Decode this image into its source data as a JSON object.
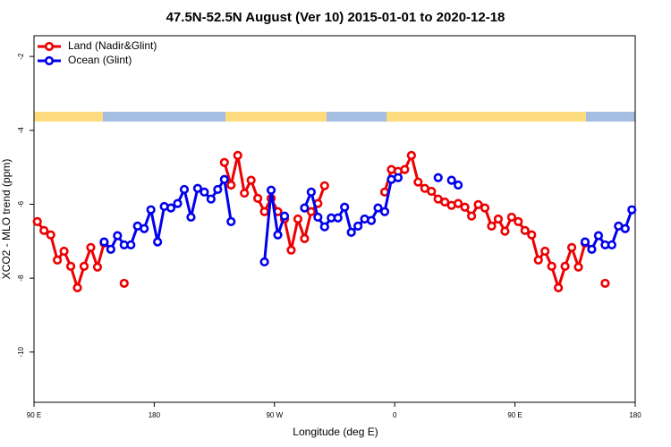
{
  "chart_data": {
    "type": "line",
    "title": "47.5N-52.5N August (Ver 10)   2015-01-01 to 2020-12-18",
    "x_label": "Longitude (deg E)",
    "y_label": "XCO2 - MLO trend (ppm)",
    "xlim": [
      90,
      540
    ],
    "ylim": [
      -11.36,
      -1.44
    ],
    "xticks": [
      {
        "value": 90,
        "label": "90 E"
      },
      180,
      {
        "value": 270,
        "label": "90 W"
      },
      {
        "value": 360,
        "label": "0"
      },
      {
        "value": 450,
        "label": "90 E"
      },
      {
        "value": 540,
        "label": "180"
      }
    ],
    "yticks": [
      -2,
      -4,
      -6,
      -8,
      -10
    ],
    "legend": "top-left",
    "x": [
      92.5,
      97.5,
      102.5,
      107.5,
      112.5,
      117.5,
      122.5,
      127.5,
      132.5,
      137.5,
      142.5,
      147.5,
      152.5,
      157.5,
      162.5,
      167.5,
      172.5,
      177.5,
      182.5,
      187.5,
      192.5,
      197.5,
      202.5,
      207.5,
      212.5,
      217.5,
      222.5,
      227.5,
      232.5,
      237.5,
      242.5,
      247.5,
      252.5,
      257.5,
      262.5,
      267.5,
      272.5,
      277.5,
      282.5,
      287.5,
      292.5,
      297.5,
      302.5,
      307.5,
      312.5,
      317.5,
      322.5,
      327.5,
      332.5,
      337.5,
      342.5,
      347.5,
      352.5,
      357.5,
      362.5,
      367.5,
      372.5,
      377.5,
      382.5,
      387.5,
      392.5,
      397.5,
      402.5,
      407.5,
      412.5,
      417.5,
      422.5,
      427.5,
      432.5,
      437.5,
      442.5,
      447.5,
      452.5,
      457.5,
      462.5,
      467.5,
      472.5,
      477.5,
      482.5,
      487.5,
      492.5,
      497.5,
      502.5,
      507.5,
      512.5,
      517.5,
      522.5,
      527.5,
      532.5,
      537.5
    ],
    "series": [
      {
        "name": "Land (Nadir&Glint)",
        "color": "#ee0000",
        "values": [
          -6.47,
          -6.71,
          -6.83,
          -7.51,
          -7.27,
          -7.68,
          -8.26,
          -7.68,
          -7.17,
          -7.7,
          -7.05,
          null,
          null,
          -8.14,
          null,
          null,
          null,
          null,
          null,
          null,
          null,
          null,
          null,
          null,
          null,
          null,
          null,
          null,
          -4.87,
          -5.48,
          -4.68,
          -5.7,
          -5.35,
          -5.84,
          -6.2,
          -5.84,
          -6.2,
          -6.4,
          -7.24,
          -6.4,
          -6.93,
          -6.2,
          -5.98,
          -5.5,
          null,
          null,
          null,
          null,
          null,
          null,
          null,
          null,
          -5.67,
          -5.06,
          -5.11,
          -5.06,
          -4.68,
          -5.4,
          -5.57,
          -5.65,
          -5.86,
          -5.94,
          -6.03,
          -5.98,
          -6.08,
          -6.32,
          -6.01,
          -6.1,
          -6.59,
          -6.4,
          -6.73,
          -6.35,
          -6.47,
          -6.71,
          -6.83,
          -7.51,
          -7.27,
          -7.68,
          -8.26,
          -7.68,
          -7.17,
          -7.7,
          -7.05,
          null,
          null,
          -8.14,
          null,
          null,
          null,
          null
        ]
      },
      {
        "name": "Ocean (Glint)",
        "color": "#0000ee",
        "values": [
          null,
          null,
          null,
          null,
          null,
          null,
          null,
          null,
          null,
          null,
          -7.02,
          -7.22,
          -6.85,
          -7.1,
          -7.1,
          -6.59,
          -6.66,
          -6.15,
          -7.02,
          -6.06,
          -6.1,
          -5.98,
          -5.6,
          -6.35,
          -5.57,
          -5.67,
          -5.86,
          -5.6,
          -5.33,
          -6.47,
          null,
          null,
          null,
          null,
          -7.56,
          -5.62,
          -6.83,
          -6.32,
          null,
          null,
          -6.1,
          -5.67,
          -6.35,
          -6.61,
          -6.37,
          -6.37,
          -6.08,
          -6.76,
          -6.59,
          -6.4,
          -6.44,
          -6.1,
          -6.2,
          -5.33,
          -5.28,
          null,
          null,
          null,
          null,
          null,
          -5.28,
          null,
          -5.35,
          -5.48,
          null,
          null,
          null,
          null,
          null,
          null,
          null,
          null,
          null,
          null,
          null,
          null,
          null,
          null,
          null,
          null,
          null,
          null,
          -7.02,
          -7.22,
          -6.85,
          -7.1,
          -7.1,
          -6.59,
          -6.66,
          -6.15
        ]
      }
    ]
  }
}
